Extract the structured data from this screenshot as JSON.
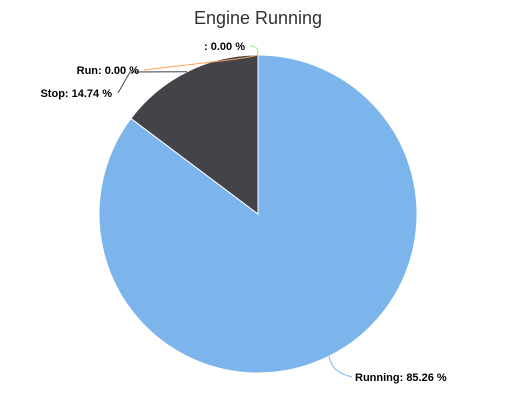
{
  "chart_data": {
    "type": "pie",
    "title": "Engine Running",
    "slices": [
      {
        "label": "Running",
        "value": 85.26,
        "display": "Running: 85.26 %",
        "color": "#7cb5ec"
      },
      {
        "label": "Stop",
        "value": 14.74,
        "display": "Stop: 14.74 %",
        "color": "#434348"
      },
      {
        "label": "Run",
        "value": 0.0,
        "display": "Run: 0.00 %",
        "color": "#f7a35c"
      },
      {
        "label": "",
        "value": 0.0,
        "display": ": 0.00 %",
        "color": "#90ed7d"
      }
    ],
    "legend": "none",
    "data_labels": "outside-with-connectors"
  }
}
